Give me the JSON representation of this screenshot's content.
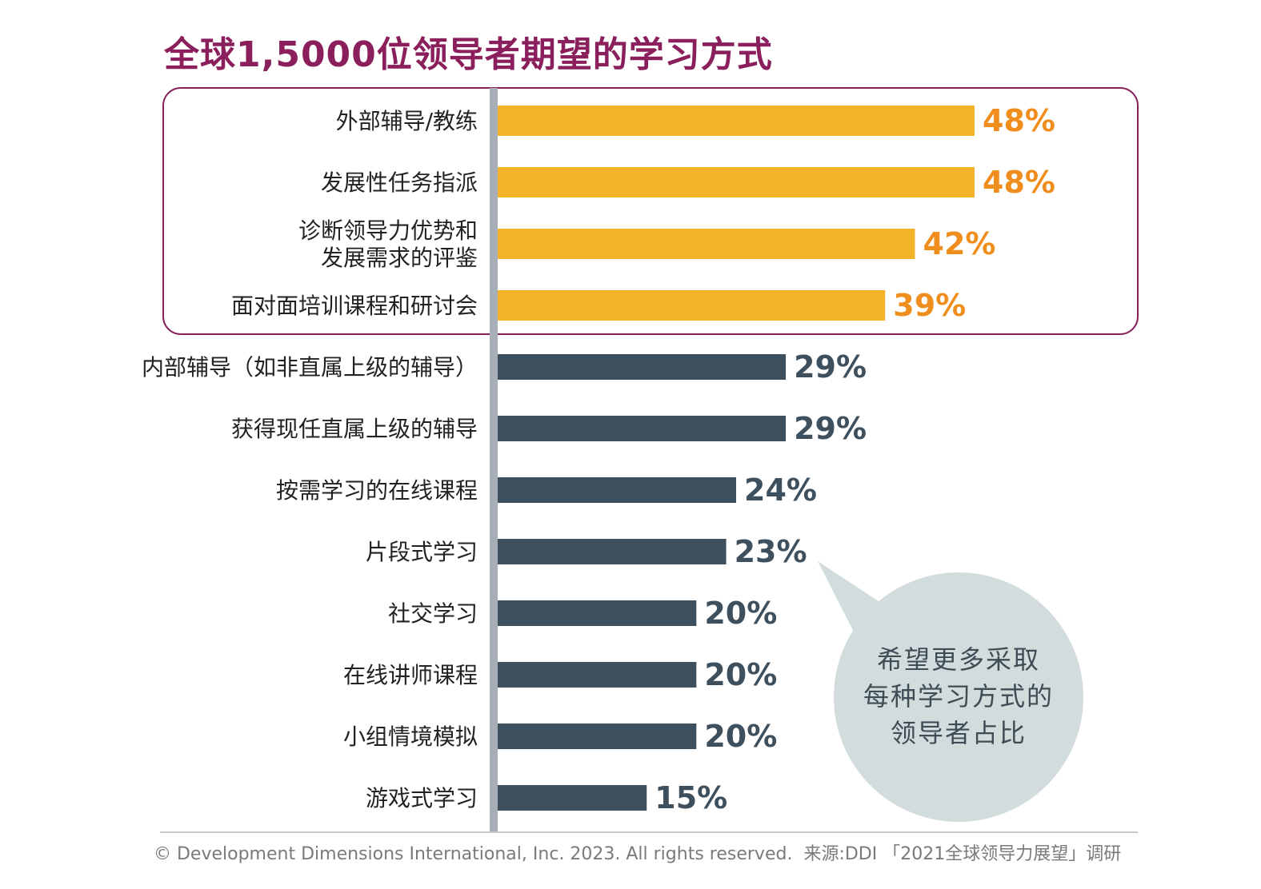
{
  "title": "全球1,5000位领导者期望的学习方式",
  "colors": {
    "title": "#8a1f5c",
    "highlight_bar": "#f2b32a",
    "highlight_value": "#ef8e1c",
    "bar": "#3e4f5d",
    "axis": "#a7aeb5",
    "highlight_frame": "#8a1f5c",
    "bubble": "#d3dcdc"
  },
  "chart_data": {
    "type": "bar",
    "orientation": "horizontal",
    "xlim": [
      0,
      50
    ],
    "categories": [
      [
        "外部辅导/教练"
      ],
      [
        "发展性任务指派"
      ],
      [
        "诊断领导力优势和",
        "发展需求的评鉴"
      ],
      [
        "面对面培训课程和研讨会"
      ],
      [
        "内部辅导（如非直属上级的辅导）"
      ],
      [
        "获得现任直属上级的辅导"
      ],
      [
        "按需学习的在线课程"
      ],
      [
        "片段式学习"
      ],
      [
        "社交学习"
      ],
      [
        "在线讲师课程"
      ],
      [
        "小组情境模拟"
      ],
      [
        "游戏式学习"
      ]
    ],
    "values": [
      48,
      48,
      42,
      39,
      29,
      29,
      24,
      23,
      20,
      20,
      20,
      15
    ],
    "value_labels": [
      "48%",
      "48%",
      "42%",
      "39%",
      "29%",
      "29%",
      "24%",
      "23%",
      "20%",
      "20%",
      "20%",
      "15%"
    ],
    "highlighted": [
      true,
      true,
      true,
      true,
      false,
      false,
      false,
      false,
      false,
      false,
      false,
      false
    ]
  },
  "callout": {
    "lines": [
      "希望更多采取",
      "每种学习方式的",
      "领导者占比"
    ]
  },
  "footer": {
    "copyright": "© Development Dimensions International, Inc. 2023. All rights reserved.",
    "source": "来源:DDI 「2021全球领导力展望」调研"
  }
}
